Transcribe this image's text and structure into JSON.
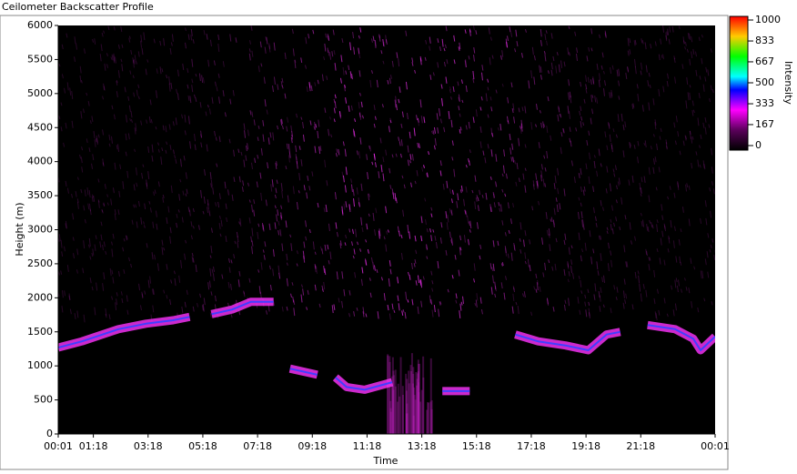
{
  "chart_data": {
    "type": "heatmap-layer",
    "title": "Ceilometer Backscatter Profile",
    "x_label": "Time",
    "y_label": "Height (m)",
    "colorbar_label": "Intensity",
    "x": [
      1,
      53,
      133,
      193,
      253,
      289,
      300,
      337,
      383,
      423,
      473,
      490,
      509,
      569,
      590,
      609,
      633,
      673,
      733,
      790,
      843,
      903,
      950,
      1003,
      1053,
      1113,
      1163,
      1203,
      1233,
      1260,
      1293,
      1353,
      1393,
      1409,
      1441
    ],
    "values": [
      1270,
      1360,
      1540,
      1620,
      1670,
      1720,
      null,
      1760,
      1830,
      1940,
      1940,
      null,
      960,
      870,
      null,
      830,
      690,
      650,
      760,
      null,
      630,
      630,
      null,
      1460,
      1360,
      1300,
      1230,
      1460,
      1500,
      null,
      1600,
      1540,
      1400,
      1230,
      1430
    ],
    "color": "#ff33ff",
    "xlim": [
      1,
      1441
    ],
    "xticks": [
      {
        "value": 1,
        "label": "00:01"
      },
      {
        "value": 78,
        "label": "01:18"
      },
      {
        "value": 198,
        "label": "03:18"
      },
      {
        "value": 318,
        "label": "05:18"
      },
      {
        "value": 438,
        "label": "07:18"
      },
      {
        "value": 558,
        "label": "09:18"
      },
      {
        "value": 678,
        "label": "11:18"
      },
      {
        "value": 798,
        "label": "13:18"
      },
      {
        "value": 918,
        "label": "15:18"
      },
      {
        "value": 1038,
        "label": "17:18"
      },
      {
        "value": 1158,
        "label": "19:18"
      },
      {
        "value": 1278,
        "label": "21:18"
      },
      {
        "value": 1441,
        "label": "00:01"
      }
    ],
    "ylim": [
      0,
      6000
    ],
    "yticks": [
      0,
      500,
      1000,
      1500,
      2000,
      2500,
      3000,
      3500,
      4000,
      4500,
      5000,
      5500,
      6000
    ],
    "clim": [
      0,
      1000
    ],
    "cticks": [
      0,
      167,
      333,
      500,
      667,
      833,
      1000
    ]
  }
}
